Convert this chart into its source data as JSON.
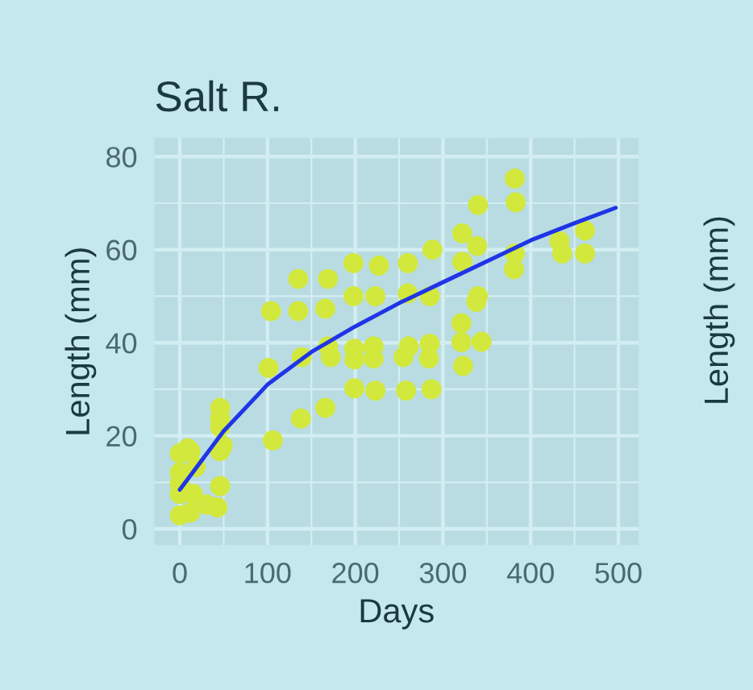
{
  "chart_data": {
    "type": "scatter",
    "title": "Salt R.",
    "xlabel": "Days",
    "ylabel": "Length (mm)",
    "annotations": [
      "Length (mm)"
    ],
    "xlim": [
      -29,
      523
    ],
    "ylim": [
      -3.5,
      84
    ],
    "xticks": [
      0,
      100,
      200,
      300,
      400,
      500
    ],
    "yticks": [
      0,
      20,
      40,
      60,
      80
    ],
    "grid": true,
    "legend": false,
    "marker": "circle",
    "series": [
      {
        "color": "#d2e83c",
        "x": [
          0,
          9,
          12,
          0,
          0,
          0,
          12,
          15,
          18,
          0,
          31,
          43,
          46,
          46,
          46,
          46,
          46,
          49,
          106,
          101,
          104,
          135,
          135,
          169,
          166,
          139,
          138,
          166,
          169,
          172,
          198,
          227,
          260,
          288,
          198,
          223,
          260,
          285,
          199,
          221,
          199,
          221,
          261,
          255,
          285,
          284,
          199,
          223,
          258,
          287,
          322,
          340,
          339,
          322,
          340,
          338,
          321,
          321,
          344,
          323,
          382,
          383,
          382,
          381,
          433,
          436,
          462,
          462
        ],
        "values": [
          16.2,
          17.3,
          16.7,
          12.1,
          7.5,
          2.9,
          3.5,
          7.5,
          13.3,
          9.8,
          5.2,
          4.6,
          9.2,
          16.7,
          26.0,
          23.7,
          21.9,
          17.9,
          19.0,
          34.6,
          46.8,
          46.8,
          53.7,
          53.7,
          47.3,
          36.9,
          23.7,
          26.0,
          39.2,
          36.9,
          57.1,
          56.6,
          57.1,
          60.0,
          50.0,
          50.0,
          50.6,
          50.0,
          38.7,
          39.2,
          36.4,
          36.6,
          39.2,
          36.9,
          39.8,
          36.6,
          30.2,
          29.7,
          29.7,
          30.0,
          63.5,
          69.6,
          60.8,
          57.4,
          50.0,
          48.8,
          44.2,
          40.1,
          40.2,
          35.0,
          75.3,
          70.2,
          59.2,
          55.8,
          61.8,
          59.2,
          64.1,
          59.2
        ]
      },
      {
        "type": "line",
        "color": "#1f35e6",
        "marker": "none",
        "line_style": "solid",
        "x": [
          0,
          50,
          100,
          150,
          200,
          250,
          300,
          350,
          400,
          450,
          497
        ],
        "values": [
          8.4,
          21,
          31,
          38,
          43.5,
          48.5,
          53,
          57.5,
          62,
          65.7,
          69
        ]
      }
    ]
  }
}
